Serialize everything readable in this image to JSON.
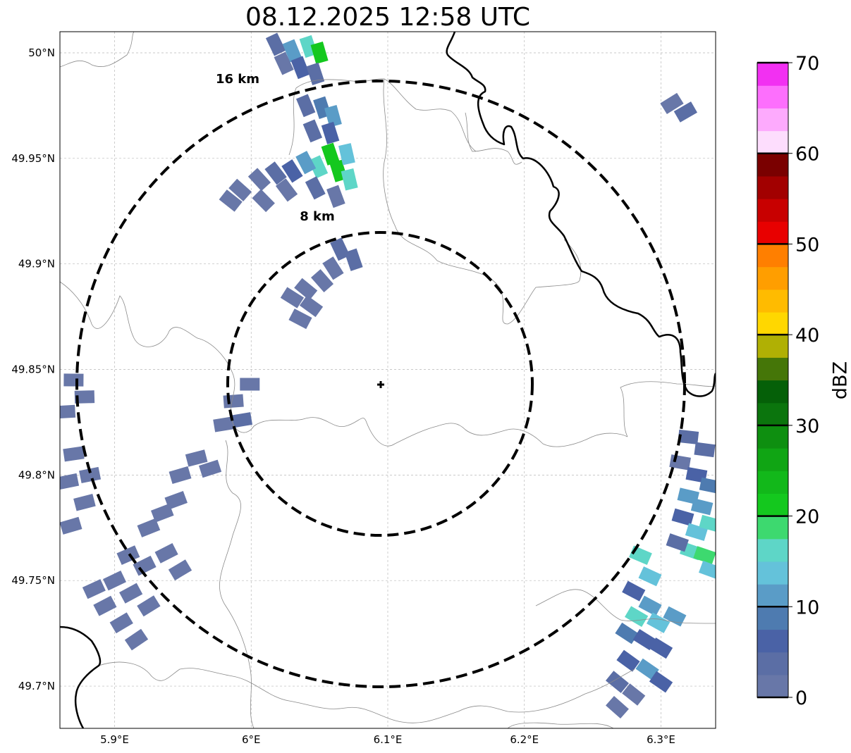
{
  "title": "08.12.2025 12:58 UTC",
  "map": {
    "lon_range": [
      5.86,
      6.34
    ],
    "lat_range": [
      49.68,
      50.01
    ],
    "lon_ticks": [
      {
        "value": 5.9,
        "label": "5.9°E"
      },
      {
        "value": 6.0,
        "label": "6°E"
      },
      {
        "value": 6.1,
        "label": "6.1°E"
      },
      {
        "value": 6.2,
        "label": "6.2°E"
      },
      {
        "value": 6.3,
        "label": "6.3°E"
      }
    ],
    "lat_ticks": [
      {
        "value": 50.0,
        "label": "50°N"
      },
      {
        "value": 49.95,
        "label": "49.95°N"
      },
      {
        "value": 49.9,
        "label": "49.9°N"
      },
      {
        "value": 49.85,
        "label": "49.85°N"
      },
      {
        "value": 49.8,
        "label": "49.8°N"
      },
      {
        "value": 49.75,
        "label": "49.75°N"
      },
      {
        "value": 49.7,
        "label": "49.7°N"
      }
    ],
    "grid": true,
    "radar_center": {
      "lon": 6.095,
      "lat": 49.843
    },
    "range_rings": [
      {
        "radius_km": 8,
        "label": "8 km"
      },
      {
        "radius_km": 16,
        "label": "16 km"
      }
    ]
  },
  "colorbar": {
    "label": "dBZ",
    "min": 0,
    "max": 70,
    "step": 2.5,
    "tick_values": [
      0,
      10,
      20,
      30,
      40,
      50,
      60,
      70
    ],
    "tick_labels": [
      "0",
      "10",
      "20",
      "30",
      "40",
      "50",
      "60",
      "70"
    ],
    "colors": [
      "#6877a8",
      "#5b6ea5",
      "#4a62a6",
      "#4e7bb0",
      "#5a9cc7",
      "#64c2da",
      "#5ed6c7",
      "#3dd96f",
      "#14c81e",
      "#12b81a",
      "#10a514",
      "#0e8f10",
      "#0b750d",
      "#056008",
      "#457608",
      "#b0b004",
      "#ffd700",
      "#ffbb00",
      "#ff9e00",
      "#ff7f00",
      "#e80000",
      "#c80000",
      "#a20000",
      "#7a0000",
      "#fdddfd",
      "#fdaafd",
      "#fd6ffd",
      "#f230f2"
    ]
  },
  "echo_cells": [
    {
      "lon": 6.018,
      "lat": 50.004,
      "dbz": 4
    },
    {
      "lon": 6.03,
      "lat": 50.001,
      "dbz": 12
    },
    {
      "lon": 6.042,
      "lat": 50.003,
      "dbz": 17
    },
    {
      "lon": 6.05,
      "lat": 50.0,
      "dbz": 22
    },
    {
      "lon": 6.036,
      "lat": 49.993,
      "dbz": 6
    },
    {
      "lon": 6.047,
      "lat": 49.99,
      "dbz": 3
    },
    {
      "lon": 6.024,
      "lat": 49.995,
      "dbz": 2
    },
    {
      "lon": 6.04,
      "lat": 49.975,
      "dbz": 4
    },
    {
      "lon": 6.052,
      "lat": 49.974,
      "dbz": 8
    },
    {
      "lon": 6.06,
      "lat": 49.97,
      "dbz": 12
    },
    {
      "lon": 6.045,
      "lat": 49.963,
      "dbz": 3
    },
    {
      "lon": 6.058,
      "lat": 49.962,
      "dbz": 5
    },
    {
      "lon": 6.058,
      "lat": 49.952,
      "dbz": 20
    },
    {
      "lon": 6.064,
      "lat": 49.944,
      "dbz": 21
    },
    {
      "lon": 6.049,
      "lat": 49.946,
      "dbz": 17
    },
    {
      "lon": 6.07,
      "lat": 49.952,
      "dbz": 13
    },
    {
      "lon": 6.072,
      "lat": 49.94,
      "dbz": 15
    },
    {
      "lon": 6.04,
      "lat": 49.948,
      "dbz": 10
    },
    {
      "lon": 6.03,
      "lat": 49.944,
      "dbz": 6
    },
    {
      "lon": 6.018,
      "lat": 49.943,
      "dbz": 3
    },
    {
      "lon": 6.006,
      "lat": 49.94,
      "dbz": 2
    },
    {
      "lon": 6.026,
      "lat": 49.935,
      "dbz": 1
    },
    {
      "lon": 6.009,
      "lat": 49.93,
      "dbz": 1
    },
    {
      "lon": 6.047,
      "lat": 49.936,
      "dbz": 4
    },
    {
      "lon": 6.062,
      "lat": 49.932,
      "dbz": 2
    },
    {
      "lon": 5.992,
      "lat": 49.935,
      "dbz": 0
    },
    {
      "lon": 5.985,
      "lat": 49.93,
      "dbz": 1
    },
    {
      "lon": 6.065,
      "lat": 49.907,
      "dbz": 3
    },
    {
      "lon": 6.075,
      "lat": 49.902,
      "dbz": 4
    },
    {
      "lon": 6.06,
      "lat": 49.898,
      "dbz": 1
    },
    {
      "lon": 6.052,
      "lat": 49.892,
      "dbz": 2
    },
    {
      "lon": 6.04,
      "lat": 49.888,
      "dbz": 1
    },
    {
      "lon": 6.03,
      "lat": 49.884,
      "dbz": 0
    },
    {
      "lon": 6.044,
      "lat": 49.88,
      "dbz": 2
    },
    {
      "lon": 6.036,
      "lat": 49.874,
      "dbz": 1
    },
    {
      "lon": 6.318,
      "lat": 49.972,
      "dbz": 3
    },
    {
      "lon": 6.308,
      "lat": 49.976,
      "dbz": 1
    },
    {
      "lon": 5.999,
      "lat": 49.843,
      "dbz": 1
    },
    {
      "lon": 5.987,
      "lat": 49.835,
      "dbz": 2
    },
    {
      "lon": 5.993,
      "lat": 49.826,
      "dbz": 3
    },
    {
      "lon": 5.98,
      "lat": 49.824,
      "dbz": 1
    },
    {
      "lon": 5.87,
      "lat": 49.845,
      "dbz": 1
    },
    {
      "lon": 5.878,
      "lat": 49.837,
      "dbz": 0
    },
    {
      "lon": 5.864,
      "lat": 49.83,
      "dbz": 0
    },
    {
      "lon": 5.96,
      "lat": 49.808,
      "dbz": 0
    },
    {
      "lon": 5.97,
      "lat": 49.803,
      "dbz": 1
    },
    {
      "lon": 5.948,
      "lat": 49.8,
      "dbz": 0
    },
    {
      "lon": 5.87,
      "lat": 49.81,
      "dbz": 0
    },
    {
      "lon": 5.882,
      "lat": 49.8,
      "dbz": 1
    },
    {
      "lon": 5.866,
      "lat": 49.797,
      "dbz": 0
    },
    {
      "lon": 5.878,
      "lat": 49.787,
      "dbz": 0
    },
    {
      "lon": 5.868,
      "lat": 49.776,
      "dbz": 1
    },
    {
      "lon": 5.935,
      "lat": 49.782,
      "dbz": 1
    },
    {
      "lon": 5.925,
      "lat": 49.775,
      "dbz": 0
    },
    {
      "lon": 5.945,
      "lat": 49.788,
      "dbz": 0
    },
    {
      "lon": 5.91,
      "lat": 49.762,
      "dbz": 0
    },
    {
      "lon": 5.922,
      "lat": 49.757,
      "dbz": 1
    },
    {
      "lon": 5.938,
      "lat": 49.763,
      "dbz": 1
    },
    {
      "lon": 5.948,
      "lat": 49.755,
      "dbz": 0
    },
    {
      "lon": 5.9,
      "lat": 49.75,
      "dbz": 0
    },
    {
      "lon": 5.912,
      "lat": 49.744,
      "dbz": 1
    },
    {
      "lon": 5.925,
      "lat": 49.738,
      "dbz": 0
    },
    {
      "lon": 5.893,
      "lat": 49.738,
      "dbz": 2
    },
    {
      "lon": 5.905,
      "lat": 49.73,
      "dbz": 0
    },
    {
      "lon": 5.885,
      "lat": 49.746,
      "dbz": 0
    },
    {
      "lon": 5.916,
      "lat": 49.722,
      "dbz": 1
    },
    {
      "lon": 6.32,
      "lat": 49.818,
      "dbz": 3
    },
    {
      "lon": 6.332,
      "lat": 49.812,
      "dbz": 4
    },
    {
      "lon": 6.314,
      "lat": 49.806,
      "dbz": 2
    },
    {
      "lon": 6.326,
      "lat": 49.8,
      "dbz": 5
    },
    {
      "lon": 6.336,
      "lat": 49.795,
      "dbz": 8
    },
    {
      "lon": 6.32,
      "lat": 49.79,
      "dbz": 12
    },
    {
      "lon": 6.33,
      "lat": 49.785,
      "dbz": 10
    },
    {
      "lon": 6.316,
      "lat": 49.78,
      "dbz": 6
    },
    {
      "lon": 6.326,
      "lat": 49.773,
      "dbz": 14
    },
    {
      "lon": 6.336,
      "lat": 49.777,
      "dbz": 16
    },
    {
      "lon": 6.322,
      "lat": 49.764,
      "dbz": 15
    },
    {
      "lon": 6.332,
      "lat": 49.762,
      "dbz": 19
    },
    {
      "lon": 6.312,
      "lat": 49.768,
      "dbz": 3
    },
    {
      "lon": 6.336,
      "lat": 49.755,
      "dbz": 14
    },
    {
      "lon": 6.285,
      "lat": 49.762,
      "dbz": 16
    },
    {
      "lon": 6.292,
      "lat": 49.752,
      "dbz": 13
    },
    {
      "lon": 6.28,
      "lat": 49.745,
      "dbz": 5
    },
    {
      "lon": 6.292,
      "lat": 49.738,
      "dbz": 12
    },
    {
      "lon": 6.282,
      "lat": 49.733,
      "dbz": 16
    },
    {
      "lon": 6.298,
      "lat": 49.73,
      "dbz": 13
    },
    {
      "lon": 6.275,
      "lat": 49.725,
      "dbz": 8
    },
    {
      "lon": 6.288,
      "lat": 49.722,
      "dbz": 6
    },
    {
      "lon": 6.3,
      "lat": 49.718,
      "dbz": 5
    },
    {
      "lon": 6.276,
      "lat": 49.712,
      "dbz": 5
    },
    {
      "lon": 6.29,
      "lat": 49.708,
      "dbz": 12
    },
    {
      "lon": 6.3,
      "lat": 49.702,
      "dbz": 6
    },
    {
      "lon": 6.268,
      "lat": 49.702,
      "dbz": 3
    },
    {
      "lon": 6.28,
      "lat": 49.696,
      "dbz": 2
    },
    {
      "lon": 6.268,
      "lat": 49.69,
      "dbz": 1
    },
    {
      "lon": 6.31,
      "lat": 49.733,
      "dbz": 11
    }
  ]
}
